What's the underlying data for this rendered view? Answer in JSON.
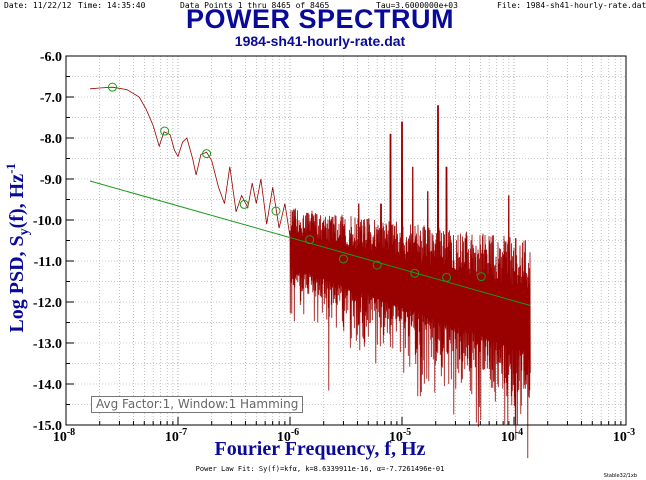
{
  "header": {
    "date": "Date: 11/22/12",
    "time": "Time: 14:35:40",
    "points": "Data Points 1 thru 8465 of 8465",
    "tau": "Tau=3.6000000e+03",
    "file": "File: 1984-sh41-hourly-rate.dat"
  },
  "chart_data": {
    "type": "line",
    "title": "POWER SPECTRUM",
    "subtitle": "1984-sh41-hourly-rate.dat",
    "xlabel": "Fourier Frequency, f, Hz",
    "ylabel_main": "Log PSD, S",
    "ylabel_sub": "y",
    "ylabel_tail": "(f), Hz",
    "ylabel_sup": "-1",
    "xscale": "log",
    "xlim": [
      1e-08,
      0.001
    ],
    "ylim": [
      -15.0,
      -6.0
    ],
    "x_tick_labels": [
      "10-8",
      "10-7",
      "10-6",
      "10-5",
      "10-4",
      "10-3"
    ],
    "y_tick_labels": [
      "-6.0",
      "-7.0",
      "-8.0",
      "-9.0",
      "-10.0",
      "-11.0",
      "-12.0",
      "-13.0",
      "-14.0",
      "-15.0"
    ],
    "grid": true,
    "series": [
      {
        "color": "#990000",
        "description_points": [
          [
            1.64e-08,
            -6.8
          ],
          [
            2e-08,
            -6.78
          ],
          [
            2.6e-08,
            -6.76
          ],
          [
            3.5e-08,
            -6.82
          ],
          [
            4.5e-08,
            -7.0
          ],
          [
            5.2e-08,
            -7.3
          ],
          [
            6e-08,
            -7.7
          ],
          [
            6.8e-08,
            -8.2
          ],
          [
            7.5e-08,
            -7.85
          ],
          [
            8.5e-08,
            -7.92
          ],
          [
            9.3e-08,
            -8.3
          ],
          [
            1e-07,
            -8.45
          ],
          [
            1.1e-07,
            -8.1
          ],
          [
            1.2e-07,
            -8.0
          ],
          [
            1.35e-07,
            -8.5
          ],
          [
            1.45e-07,
            -8.9
          ],
          [
            1.6e-07,
            -8.4
          ],
          [
            1.8e-07,
            -8.35
          ],
          [
            2e-07,
            -8.55
          ],
          [
            2.3e-07,
            -9.2
          ],
          [
            2.6e-07,
            -9.6
          ],
          [
            2.9e-07,
            -8.7
          ],
          [
            3.3e-07,
            -9.8
          ],
          [
            3.7e-07,
            -9.4
          ],
          [
            4.2e-07,
            -9.7
          ],
          [
            4.6e-07,
            -9.1
          ],
          [
            5e-07,
            -9.6
          ],
          [
            5.5e-07,
            -9.0
          ],
          [
            6.2e-07,
            -10.1
          ],
          [
            7e-07,
            -9.2
          ],
          [
            8e-07,
            -10.2
          ],
          [
            9e-07,
            -9.6
          ],
          [
            1e-06,
            -10.4
          ]
        ]
      },
      {
        "name": "Power Law Fit",
        "color": "#1a9a1a",
        "k": 8.6339911e-16,
        "alpha": -0.77261496
      }
    ],
    "markers": [
      [
        2.6e-08,
        -6.76
      ],
      [
        7.6e-08,
        -7.83
      ],
      [
        1.8e-07,
        -8.38
      ],
      [
        3.9e-07,
        -9.62
      ],
      [
        7.5e-07,
        -9.78
      ],
      [
        1.5e-06,
        -10.48
      ],
      [
        3e-06,
        -10.95
      ],
      [
        6e-06,
        -11.1
      ],
      [
        1.3e-05,
        -11.3
      ],
      [
        2.5e-05,
        -11.4
      ],
      [
        5.1e-05,
        -11.38
      ]
    ]
  },
  "avg_box": "Avg Factor:1, Window:1 Hamming",
  "fit_note": "Power Law Fit: Sy(f)=kfα, k=8.6339911e-16, α=-7.7261496e-01",
  "credit": "Stable32/1xb"
}
